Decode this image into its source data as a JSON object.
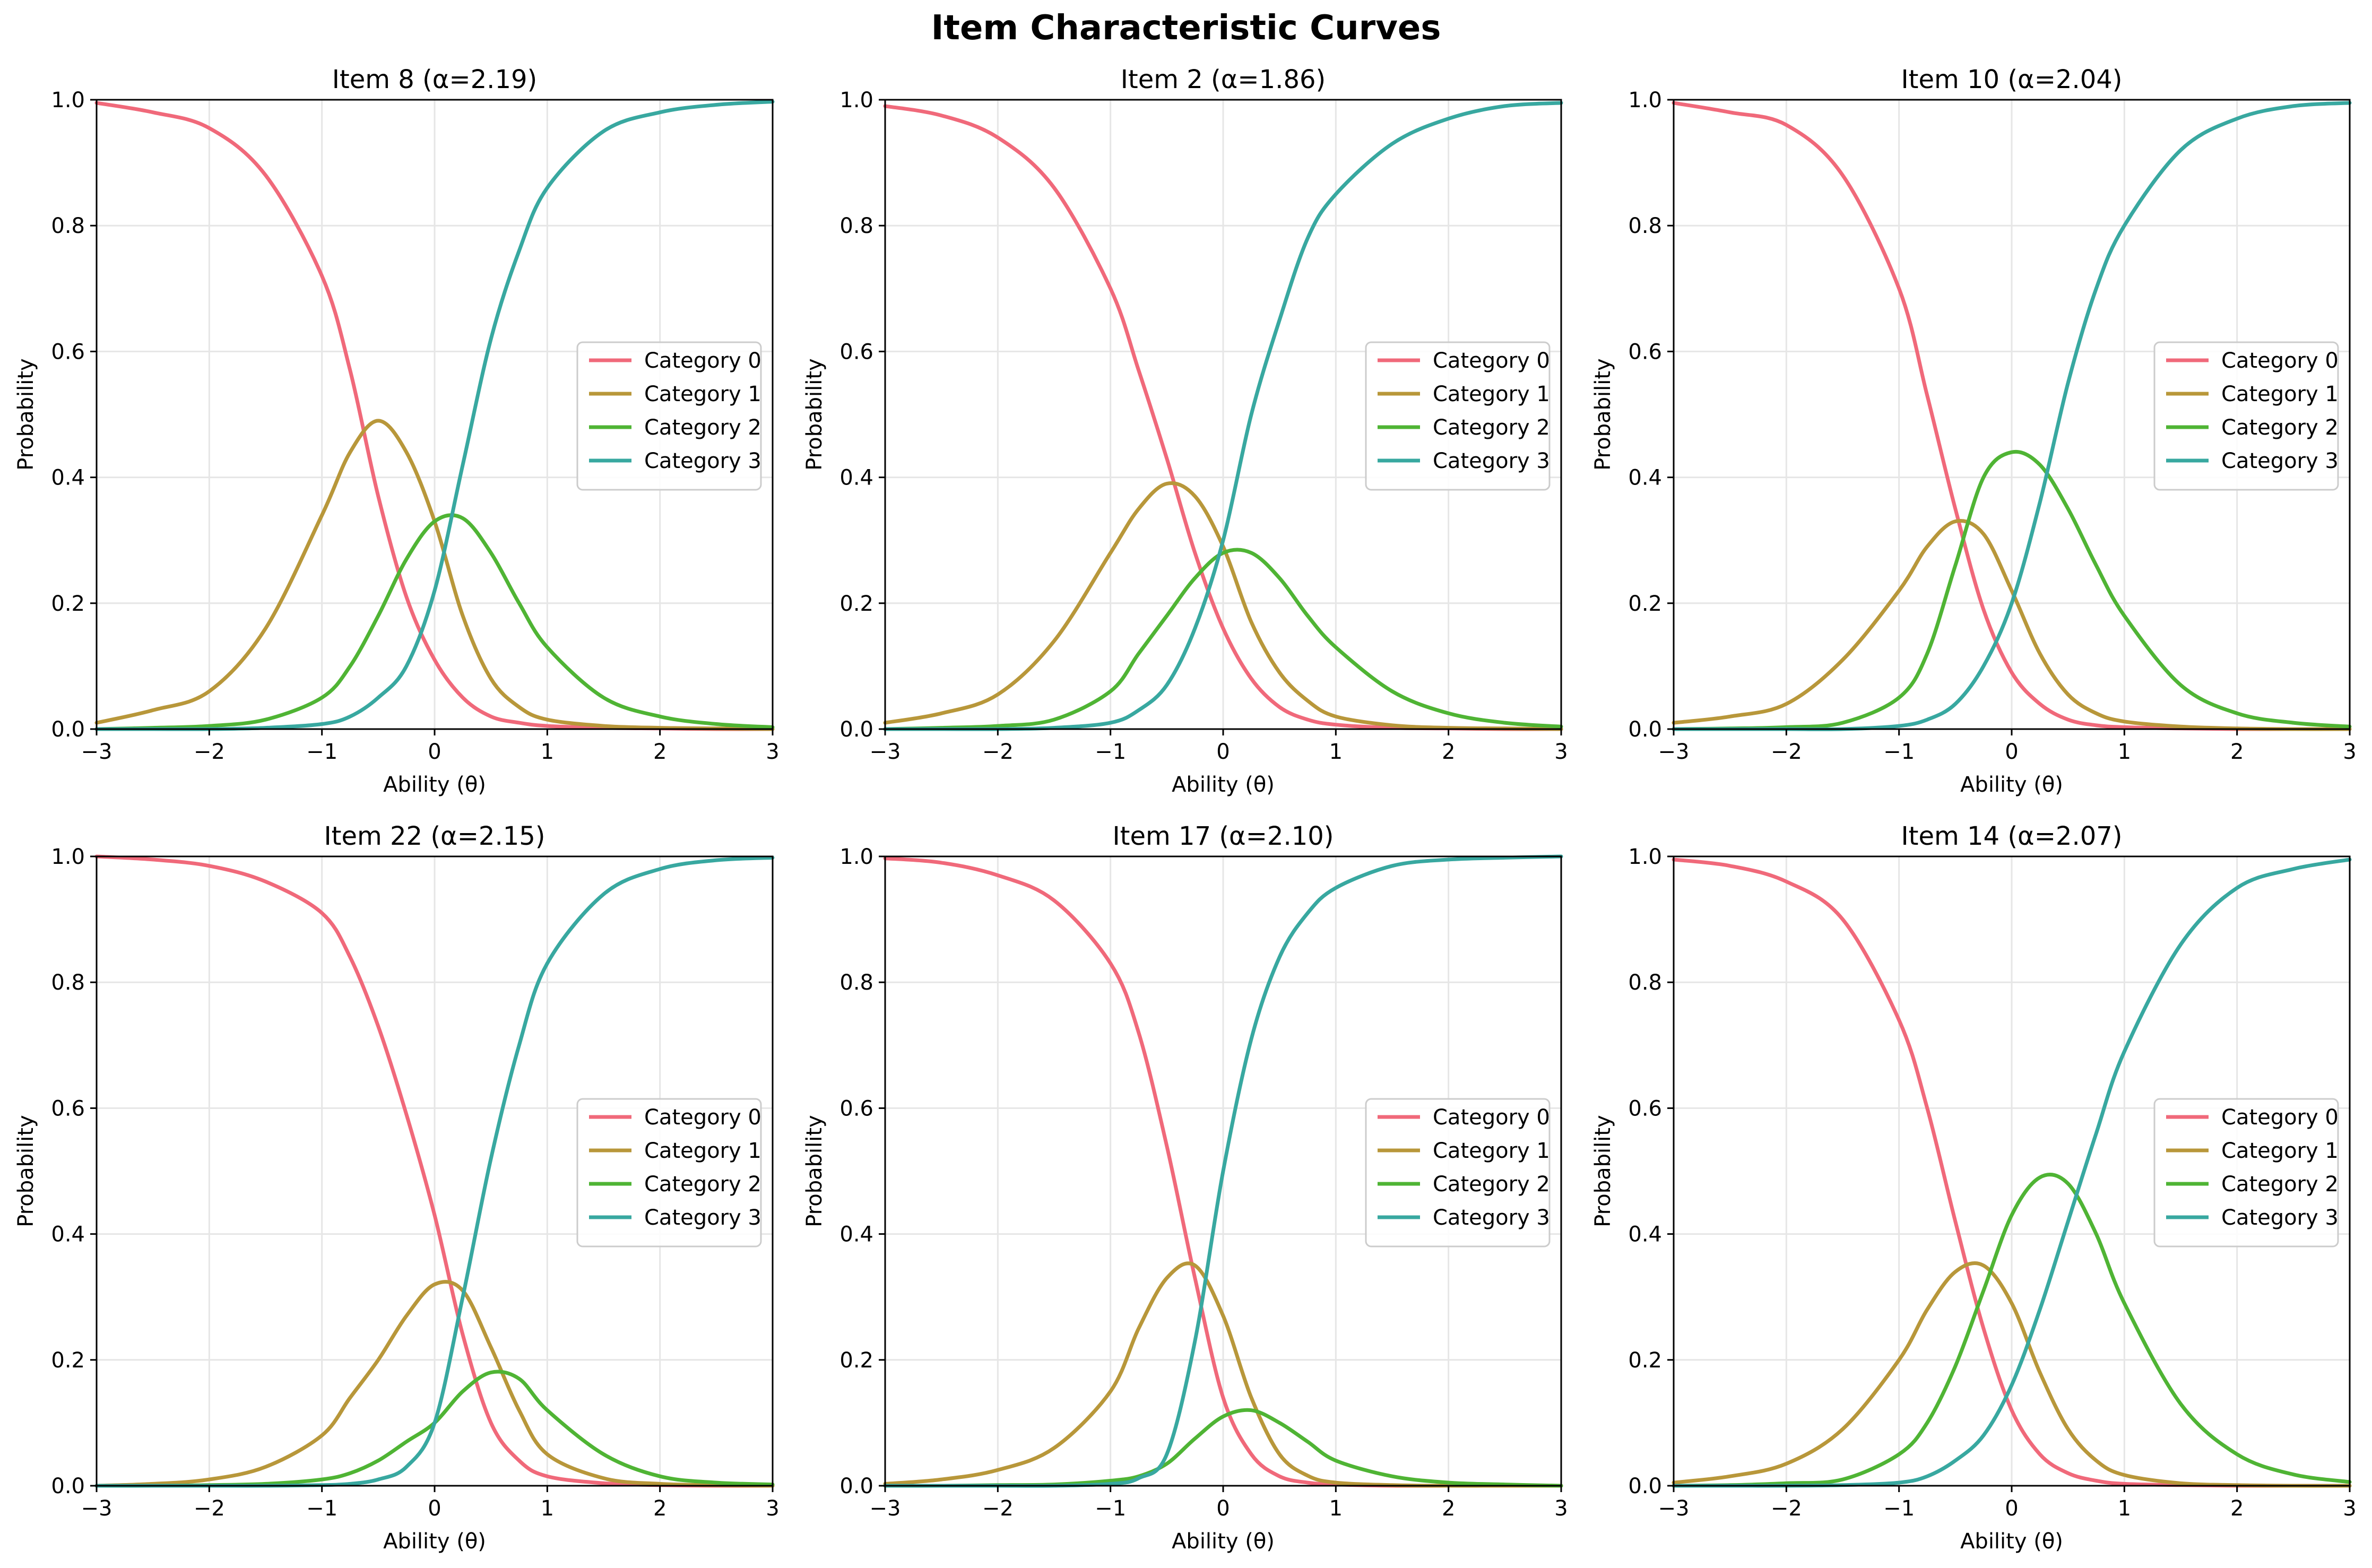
{
  "figure": {
    "title": "Item Characteristic Curves"
  },
  "colors": {
    "Category 0": "#f0697a",
    "Category 1": "#b8973a",
    "Category 2": "#4fb434",
    "Category 3": "#38a8a0",
    "grid": "#e6e6e6",
    "axes": "#000000"
  },
  "chart_data": [
    {
      "type": "line",
      "title": "Item 8 (α=2.19)",
      "xlabel": "Ability (θ)",
      "ylabel": "Probability",
      "xlim": [
        -3,
        3
      ],
      "ylim": [
        0,
        1
      ],
      "xticks": [
        "−3",
        "−2",
        "−1",
        "0",
        "1",
        "2",
        "3"
      ],
      "yticks": [
        "0.0",
        "0.2",
        "0.4",
        "0.6",
        "0.8",
        "1.0"
      ],
      "grid": true,
      "legend": "center-right",
      "x": [
        -3,
        -2.5,
        -2,
        -1.5,
        -1,
        -0.75,
        -0.5,
        -0.25,
        0,
        0.25,
        0.5,
        0.75,
        1,
        1.5,
        2,
        2.5,
        3
      ],
      "series": [
        {
          "name": "Category 0",
          "values": [
            0.995,
            0.98,
            0.955,
            0.88,
            0.72,
            0.57,
            0.37,
            0.21,
            0.11,
            0.05,
            0.02,
            0.01,
            0.005,
            0.002,
            0.001,
            0,
            0
          ]
        },
        {
          "name": "Category 1",
          "values": [
            0.01,
            0.03,
            0.06,
            0.16,
            0.34,
            0.44,
            0.49,
            0.44,
            0.33,
            0.18,
            0.08,
            0.035,
            0.015,
            0.005,
            0.002,
            0.001,
            0
          ]
        },
        {
          "name": "Category 2",
          "values": [
            0,
            0.002,
            0.005,
            0.015,
            0.05,
            0.1,
            0.18,
            0.27,
            0.33,
            0.335,
            0.28,
            0.2,
            0.13,
            0.05,
            0.02,
            0.008,
            0.003
          ]
        },
        {
          "name": "Category 3",
          "values": [
            0,
            0,
            0,
            0.002,
            0.008,
            0.02,
            0.05,
            0.1,
            0.22,
            0.42,
            0.62,
            0.76,
            0.86,
            0.95,
            0.98,
            0.992,
            0.997
          ]
        }
      ]
    },
    {
      "type": "line",
      "title": "Item 2 (α=1.86)",
      "xlabel": "Ability (θ)",
      "ylabel": "Probability",
      "xlim": [
        -3,
        3
      ],
      "ylim": [
        0,
        1
      ],
      "xticks": [
        "−3",
        "−2",
        "−1",
        "0",
        "1",
        "2",
        "3"
      ],
      "yticks": [
        "0.0",
        "0.2",
        "0.4",
        "0.6",
        "0.8",
        "1.0"
      ],
      "grid": true,
      "legend": "center-right",
      "x": [
        -3,
        -2.5,
        -2,
        -1.5,
        -1,
        -0.75,
        -0.5,
        -0.25,
        0,
        0.25,
        0.5,
        0.75,
        1,
        1.5,
        2,
        2.5,
        3
      ],
      "series": [
        {
          "name": "Category 0",
          "values": [
            0.99,
            0.975,
            0.94,
            0.86,
            0.7,
            0.57,
            0.43,
            0.28,
            0.16,
            0.08,
            0.035,
            0.015,
            0.007,
            0.002,
            0.001,
            0,
            0
          ]
        },
        {
          "name": "Category 1",
          "values": [
            0.01,
            0.025,
            0.055,
            0.14,
            0.28,
            0.35,
            0.39,
            0.37,
            0.29,
            0.17,
            0.09,
            0.045,
            0.02,
            0.006,
            0.002,
            0.001,
            0
          ]
        },
        {
          "name": "Category 2",
          "values": [
            0,
            0.002,
            0.005,
            0.015,
            0.06,
            0.12,
            0.18,
            0.24,
            0.28,
            0.28,
            0.24,
            0.18,
            0.13,
            0.06,
            0.025,
            0.01,
            0.004
          ]
        },
        {
          "name": "Category 3",
          "values": [
            0,
            0,
            0,
            0.002,
            0.01,
            0.03,
            0.07,
            0.16,
            0.3,
            0.5,
            0.65,
            0.78,
            0.85,
            0.93,
            0.97,
            0.99,
            0.995
          ]
        }
      ]
    },
    {
      "type": "line",
      "title": "Item 10 (α=2.04)",
      "xlabel": "Ability (θ)",
      "ylabel": "Probability",
      "xlim": [
        -3,
        3
      ],
      "ylim": [
        0,
        1
      ],
      "xticks": [
        "−3",
        "−2",
        "−1",
        "0",
        "1",
        "2",
        "3"
      ],
      "yticks": [
        "0.0",
        "0.2",
        "0.4",
        "0.6",
        "0.8",
        "1.0"
      ],
      "grid": true,
      "legend": "center-right",
      "x": [
        -3,
        -2.5,
        -2,
        -1.5,
        -1,
        -0.75,
        -0.5,
        -0.25,
        0,
        0.25,
        0.5,
        0.75,
        1,
        1.5,
        2,
        2.5,
        3
      ],
      "series": [
        {
          "name": "Category 0",
          "values": [
            0.995,
            0.98,
            0.96,
            0.88,
            0.7,
            0.53,
            0.35,
            0.19,
            0.09,
            0.04,
            0.015,
            0.006,
            0.003,
            0.001,
            0,
            0,
            0
          ]
        },
        {
          "name": "Category 1",
          "values": [
            0.01,
            0.02,
            0.04,
            0.11,
            0.22,
            0.29,
            0.33,
            0.31,
            0.22,
            0.12,
            0.055,
            0.025,
            0.012,
            0.004,
            0.001,
            0,
            0
          ]
        },
        {
          "name": "Category 2",
          "values": [
            0,
            0.001,
            0.003,
            0.01,
            0.05,
            0.12,
            0.26,
            0.4,
            0.44,
            0.42,
            0.35,
            0.26,
            0.18,
            0.07,
            0.025,
            0.01,
            0.004
          ]
        },
        {
          "name": "Category 3",
          "values": [
            0,
            0,
            0,
            0,
            0.005,
            0.015,
            0.04,
            0.1,
            0.2,
            0.36,
            0.55,
            0.7,
            0.8,
            0.92,
            0.97,
            0.99,
            0.995
          ]
        }
      ]
    },
    {
      "type": "line",
      "title": "Item 22 (α=2.15)",
      "xlabel": "Ability (θ)",
      "ylabel": "Probability",
      "xlim": [
        -3,
        3
      ],
      "ylim": [
        0,
        1
      ],
      "xticks": [
        "−3",
        "−2",
        "−1",
        "0",
        "1",
        "2",
        "3"
      ],
      "yticks": [
        "0.0",
        "0.2",
        "0.4",
        "0.6",
        "0.8",
        "1.0"
      ],
      "grid": true,
      "legend": "center-right",
      "x": [
        -3,
        -2.5,
        -2,
        -1.5,
        -1,
        -0.75,
        -0.5,
        -0.25,
        0,
        0.25,
        0.5,
        0.75,
        1,
        1.5,
        2,
        2.5,
        3
      ],
      "series": [
        {
          "name": "Category 0",
          "values": [
            1,
            0.995,
            0.985,
            0.96,
            0.91,
            0.84,
            0.73,
            0.59,
            0.43,
            0.24,
            0.1,
            0.04,
            0.015,
            0.004,
            0.001,
            0,
            0
          ]
        },
        {
          "name": "Category 1",
          "values": [
            0,
            0.003,
            0.01,
            0.03,
            0.08,
            0.14,
            0.2,
            0.27,
            0.32,
            0.31,
            0.22,
            0.12,
            0.05,
            0.012,
            0.003,
            0.001,
            0
          ]
        },
        {
          "name": "Category 2",
          "values": [
            0,
            0,
            0.001,
            0.003,
            0.01,
            0.02,
            0.04,
            0.07,
            0.1,
            0.15,
            0.18,
            0.17,
            0.12,
            0.05,
            0.015,
            0.005,
            0.002
          ]
        },
        {
          "name": "Category 3",
          "values": [
            0,
            0,
            0,
            0,
            0.001,
            0.003,
            0.01,
            0.03,
            0.1,
            0.3,
            0.52,
            0.7,
            0.83,
            0.94,
            0.98,
            0.994,
            0.998
          ]
        }
      ]
    },
    {
      "type": "line",
      "title": "Item 17 (α=2.10)",
      "xlabel": "Ability (θ)",
      "ylabel": "Probability",
      "xlim": [
        -3,
        3
      ],
      "ylim": [
        0,
        1
      ],
      "xticks": [
        "−3",
        "−2",
        "−1",
        "0",
        "1",
        "2",
        "3"
      ],
      "yticks": [
        "0.0",
        "0.2",
        "0.4",
        "0.6",
        "0.8",
        "1.0"
      ],
      "grid": true,
      "legend": "center-right",
      "x": [
        -3,
        -2.5,
        -2,
        -1.5,
        -1,
        -0.75,
        -0.5,
        -0.25,
        0,
        0.25,
        0.5,
        0.75,
        1,
        1.5,
        2,
        2.5,
        3
      ],
      "series": [
        {
          "name": "Category 0",
          "values": [
            0.997,
            0.99,
            0.97,
            0.93,
            0.83,
            0.72,
            0.54,
            0.33,
            0.14,
            0.05,
            0.015,
            0.005,
            0.002,
            0,
            0,
            0,
            0
          ]
        },
        {
          "name": "Category 1",
          "values": [
            0.003,
            0.01,
            0.025,
            0.06,
            0.15,
            0.25,
            0.33,
            0.35,
            0.27,
            0.14,
            0.05,
            0.016,
            0.005,
            0.001,
            0,
            0,
            0
          ]
        },
        {
          "name": "Category 2",
          "values": [
            0,
            0,
            0.001,
            0.002,
            0.008,
            0.015,
            0.035,
            0.075,
            0.11,
            0.12,
            0.1,
            0.07,
            0.04,
            0.015,
            0.005,
            0.002,
            0
          ]
        },
        {
          "name": "Category 3",
          "values": [
            0,
            0,
            0,
            0,
            0.003,
            0.012,
            0.05,
            0.23,
            0.5,
            0.71,
            0.84,
            0.91,
            0.95,
            0.985,
            0.995,
            0.998,
            1
          ]
        }
      ]
    },
    {
      "type": "line",
      "title": "Item 14 (α=2.07)",
      "xlabel": "Ability (θ)",
      "ylabel": "Probability",
      "xlim": [
        -3,
        3
      ],
      "ylim": [
        0,
        1
      ],
      "xticks": [
        "−3",
        "−2",
        "−1",
        "0",
        "1",
        "2",
        "3"
      ],
      "yticks": [
        "0.0",
        "0.2",
        "0.4",
        "0.6",
        "0.8",
        "1.0"
      ],
      "grid": true,
      "legend": "center-right",
      "x": [
        -3,
        -2.5,
        -2,
        -1.5,
        -1,
        -0.75,
        -0.5,
        -0.25,
        0,
        0.25,
        0.5,
        0.75,
        1,
        1.5,
        2,
        2.5,
        3
      ],
      "series": [
        {
          "name": "Category 0",
          "values": [
            0.995,
            0.985,
            0.96,
            0.9,
            0.74,
            0.6,
            0.42,
            0.25,
            0.12,
            0.05,
            0.02,
            0.008,
            0.003,
            0.001,
            0,
            0,
            0
          ]
        },
        {
          "name": "Category 1",
          "values": [
            0.005,
            0.015,
            0.035,
            0.09,
            0.2,
            0.28,
            0.34,
            0.35,
            0.29,
            0.18,
            0.09,
            0.04,
            0.017,
            0.004,
            0.001,
            0,
            0
          ]
        },
        {
          "name": "Category 2",
          "values": [
            0,
            0.001,
            0.004,
            0.01,
            0.05,
            0.1,
            0.19,
            0.31,
            0.43,
            0.49,
            0.48,
            0.4,
            0.29,
            0.13,
            0.05,
            0.018,
            0.006
          ]
        },
        {
          "name": "Category 3",
          "values": [
            0,
            0,
            0,
            0.001,
            0.005,
            0.015,
            0.04,
            0.08,
            0.16,
            0.28,
            0.42,
            0.56,
            0.69,
            0.86,
            0.95,
            0.98,
            0.995
          ]
        }
      ]
    }
  ]
}
